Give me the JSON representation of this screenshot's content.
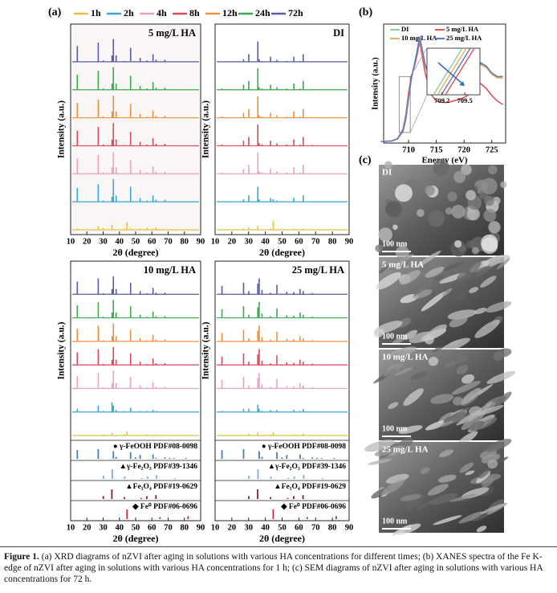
{
  "panel_labels": [
    "(a)",
    "(b)",
    "(c)"
  ],
  "chart_data": [
    {
      "type": "stick",
      "legend": [
        {
          "name": "1h",
          "color": "#e8c040"
        },
        {
          "name": "2h",
          "color": "#3aa7d0"
        },
        {
          "name": "4h",
          "color": "#eaa2c4"
        },
        {
          "name": "8h",
          "color": "#d84a5a"
        },
        {
          "name": "12h",
          "color": "#ee9040"
        },
        {
          "name": "24h",
          "color": "#3aaa50"
        },
        {
          "name": "72h",
          "color": "#5a5aa8"
        }
      ],
      "ylabel": "Intensity (a.u.)",
      "xlabel": "2θ (degree)",
      "xlim": [
        10,
        90
      ],
      "xticks": [
        10,
        20,
        30,
        40,
        50,
        60,
        70,
        80,
        90
      ],
      "x": [
        14.1,
        27.0,
        30.1,
        35.5,
        36.3,
        38.0,
        43.1,
        44.7,
        46.9,
        52.8,
        57.0,
        60.7,
        62.6,
        65.0,
        68.0
      ],
      "panels": [
        {
          "title": "5 mg/L HA",
          "series": [
            [
              5,
              15,
              8,
              20,
              0,
              0,
              5,
              30,
              5,
              5,
              8,
              5,
              10,
              0,
              3
            ],
            [
              55,
              70,
              5,
              20,
              90,
              25,
              3,
              0,
              60,
              15,
              5,
              25,
              8,
              0,
              8
            ],
            [
              60,
              75,
              5,
              25,
              85,
              25,
              3,
              0,
              55,
              15,
              5,
              30,
              8,
              0,
              8
            ],
            [
              60,
              75,
              5,
              25,
              90,
              25,
              3,
              0,
              55,
              15,
              5,
              30,
              8,
              0,
              8
            ],
            [
              58,
              72,
              5,
              25,
              88,
              25,
              3,
              0,
              55,
              15,
              5,
              28,
              8,
              0,
              8
            ],
            [
              60,
              75,
              5,
              25,
              90,
              25,
              3,
              0,
              55,
              15,
              5,
              30,
              8,
              0,
              8
            ],
            [
              62,
              76,
              5,
              25,
              90,
              25,
              3,
              0,
              55,
              15,
              5,
              30,
              8,
              0,
              8
            ]
          ]
        },
        {
          "title": "DI",
          "series": [
            [
              0,
              5,
              10,
              15,
              0,
              0,
              5,
              35,
              0,
              0,
              5,
              0,
              5,
              0,
              0
            ],
            [
              0,
              10,
              25,
              60,
              10,
              0,
              15,
              10,
              5,
              0,
              15,
              0,
              25,
              0,
              0
            ],
            [
              5,
              20,
              35,
              85,
              10,
              5,
              20,
              0,
              10,
              5,
              25,
              5,
              35,
              0,
              3
            ],
            [
              5,
              20,
              35,
              85,
              10,
              5,
              20,
              0,
              10,
              5,
              25,
              5,
              35,
              0,
              3
            ],
            [
              5,
              20,
              35,
              85,
              10,
              5,
              20,
              0,
              10,
              5,
              25,
              5,
              35,
              0,
              3
            ],
            [
              5,
              20,
              35,
              85,
              10,
              5,
              20,
              0,
              10,
              5,
              25,
              5,
              35,
              0,
              3
            ],
            [
              0,
              10,
              30,
              80,
              10,
              3,
              20,
              0,
              8,
              3,
              20,
              3,
              30,
              0,
              2
            ]
          ]
        },
        {
          "title": "10 mg/L HA",
          "series": [
            [
              0,
              3,
              5,
              12,
              0,
              0,
              5,
              20,
              0,
              0,
              5,
              0,
              5,
              0,
              0
            ],
            [
              15,
              30,
              5,
              45,
              30,
              10,
              5,
              0,
              20,
              5,
              5,
              10,
              5,
              0,
              3
            ],
            [
              60,
              75,
              5,
              25,
              85,
              25,
              3,
              0,
              55,
              15,
              5,
              30,
              8,
              0,
              8
            ],
            [
              60,
              75,
              5,
              25,
              85,
              25,
              3,
              0,
              55,
              15,
              5,
              30,
              8,
              0,
              8
            ],
            [
              60,
              75,
              5,
              25,
              85,
              25,
              3,
              0,
              55,
              15,
              5,
              30,
              8,
              0,
              8
            ],
            [
              60,
              75,
              5,
              25,
              85,
              25,
              3,
              0,
              55,
              15,
              5,
              30,
              8,
              0,
              8
            ],
            [
              60,
              75,
              5,
              25,
              85,
              25,
              3,
              0,
              55,
              15,
              5,
              30,
              8,
              0,
              8
            ]
          ]
        },
        {
          "title": "25 mg/L HA",
          "series": [
            [
              0,
              3,
              8,
              15,
              0,
              0,
              5,
              15,
              0,
              0,
              5,
              0,
              8,
              0,
              0
            ],
            [
              5,
              15,
              15,
              35,
              15,
              5,
              10,
              0,
              10,
              3,
              10,
              5,
              15,
              0,
              2
            ],
            [
              40,
              55,
              15,
              50,
              75,
              20,
              8,
              0,
              45,
              12,
              10,
              25,
              15,
              0,
              6
            ],
            [
              40,
              55,
              15,
              50,
              75,
              20,
              8,
              0,
              45,
              12,
              10,
              25,
              15,
              0,
              6
            ],
            [
              40,
              55,
              15,
              50,
              75,
              20,
              8,
              0,
              45,
              12,
              10,
              25,
              15,
              0,
              6
            ],
            [
              40,
              55,
              15,
              50,
              75,
              20,
              8,
              0,
              45,
              12,
              10,
              25,
              15,
              0,
              6
            ],
            [
              40,
              55,
              15,
              50,
              75,
              20,
              8,
              0,
              45,
              12,
              10,
              25,
              15,
              0,
              6
            ]
          ]
        }
      ],
      "references": [
        {
          "label": "● γ-FeOOH  PDF#08-0098",
          "color": "#4a7ab8",
          "x": [
            14.1,
            27.0,
            36.3,
            38.0,
            46.9,
            49.9,
            52.8,
            60.7,
            62.6,
            68.0,
            70.9,
            73.5,
            81.0
          ],
          "values": [
            90,
            100,
            80,
            20,
            70,
            15,
            40,
            45,
            10,
            15,
            10,
            8,
            10
          ]
        },
        {
          "label": "▲γ-Fe₂O₃ PDF#39-1346",
          "color": "#7aaedc",
          "x": [
            30.2,
            35.6,
            43.3,
            53.7,
            57.3,
            62.9,
            74.1
          ],
          "values": [
            35,
            100,
            25,
            10,
            25,
            40,
            8
          ]
        },
        {
          "label": "▲Fe₃O₄ PDF#19-0629",
          "color": "#8a1a3a",
          "x": [
            30.1,
            35.4,
            43.1,
            53.4,
            56.9,
            62.5
          ],
          "values": [
            30,
            100,
            20,
            10,
            30,
            40
          ]
        },
        {
          "label": "◆ Fe⁰ PDF#06-0696",
          "color": "#c03040",
          "x": [
            44.7,
            65.0,
            82.3
          ],
          "values": [
            100,
            20,
            30
          ]
        }
      ]
    },
    {
      "type": "line",
      "ylabel": "Intensity (a.u.)",
      "xlabel": "Energy (eV)",
      "xlim": [
        705.5,
        727.5
      ],
      "xticks": [
        710,
        715,
        720,
        725
      ],
      "ylim": [
        0,
        1.7
      ],
      "x": [
        705,
        707,
        708,
        709,
        709.5,
        710,
        710.5,
        711,
        711.5,
        712,
        713,
        714,
        715,
        716,
        717,
        718,
        719,
        720,
        721,
        722,
        723,
        724,
        725,
        726,
        727
      ],
      "series": [
        {
          "name": "DI",
          "color": "#8fce9a",
          "values": [
            0.02,
            0.03,
            0.06,
            0.2,
            0.4,
            0.7,
            0.95,
            1.1,
            1.3,
            1.5,
            1.1,
            0.9,
            0.85,
            0.85,
            0.88,
            0.9,
            0.95,
            1.0,
            1.05,
            1.1,
            1.15,
            1.1,
            1.0,
            0.95,
            0.95
          ]
        },
        {
          "name": "5 mg/L HA",
          "color": "#e0505a",
          "values": [
            0.02,
            0.03,
            0.06,
            0.2,
            0.4,
            0.72,
            0.95,
            1.08,
            1.25,
            1.45,
            1.0,
            0.7,
            0.6,
            0.58,
            0.58,
            0.6,
            0.62,
            0.65,
            0.7,
            0.8,
            0.85,
            0.78,
            0.68,
            0.6,
            0.55
          ]
        },
        {
          "name": "10 mg/L HA",
          "color": "#e8b060",
          "values": [
            0.02,
            0.03,
            0.06,
            0.18,
            0.36,
            0.66,
            0.93,
            1.1,
            1.3,
            1.5,
            1.1,
            0.88,
            0.83,
            0.83,
            0.86,
            0.88,
            0.93,
            0.98,
            1.03,
            1.08,
            1.12,
            1.08,
            0.98,
            0.93,
            0.93
          ]
        },
        {
          "name": "25 mg/L HA",
          "color": "#5a7ac8",
          "values": [
            0.02,
            0.03,
            0.06,
            0.17,
            0.34,
            0.64,
            0.92,
            1.1,
            1.3,
            1.52,
            1.12,
            0.9,
            0.84,
            0.84,
            0.87,
            0.9,
            0.95,
            1.0,
            1.05,
            1.1,
            1.14,
            1.1,
            1.0,
            0.95,
            0.95
          ]
        }
      ],
      "inset": {
        "xlim": [
          709.0,
          709.7
        ],
        "xticks": [
          709.2,
          709.5
        ]
      }
    }
  ],
  "sem": [
    {
      "label": "DI",
      "scale": "100 nm"
    },
    {
      "label": "5 mg/L HA",
      "scale": "100 nm"
    },
    {
      "label": "10 mg/L HA",
      "scale": "100 nm"
    },
    {
      "label": "25 mg/L HA",
      "scale": "100 nm"
    }
  ],
  "caption": {
    "label": "Figure 1.",
    "text": "(a) XRD diagrams of nZVI after aging in solutions with various HA concentrations for different times; (b) XANES spectra of the Fe K-edge of nZVI after aging in solutions with various HA concentrations for 1 h; (c) SEM diagrams of nZVI after aging in solutions with various HA concentrations for 72 h."
  }
}
